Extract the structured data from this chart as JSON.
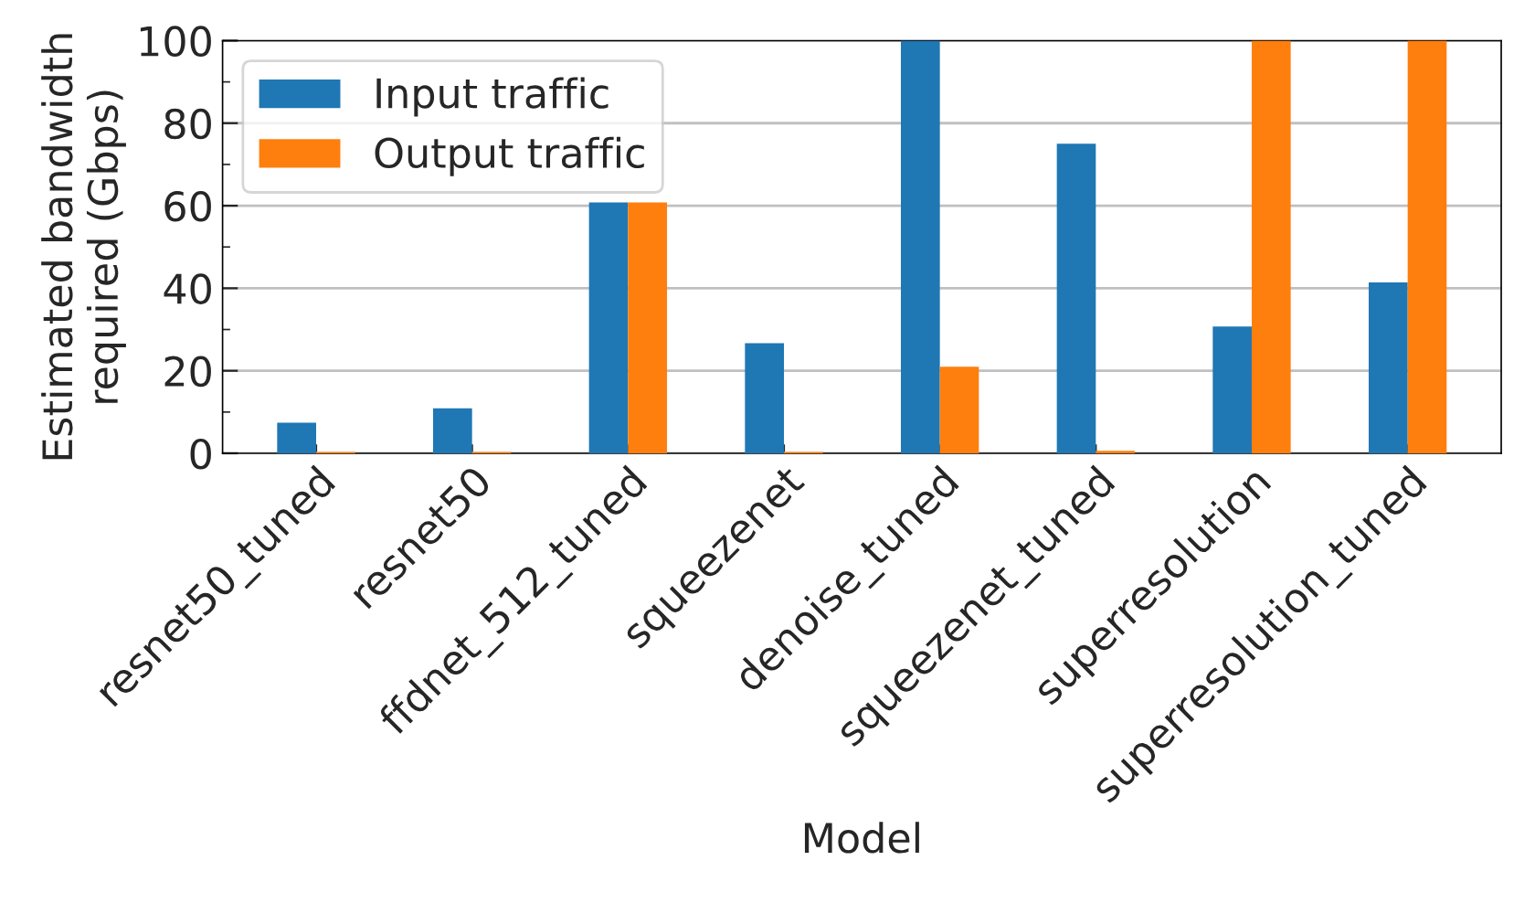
{
  "chart_data": {
    "type": "bar",
    "xlabel": "Model",
    "ylabel": "Estimated bandwidth\nrequired (Gbps)",
    "categories": [
      "resnet50_tuned",
      "resnet50",
      "ffdnet_512_tuned",
      "squeezenet",
      "denoise_tuned",
      "squeezenet_tuned",
      "superresolution",
      "superresolution_tuned"
    ],
    "series": [
      {
        "name": "Input traffic",
        "color": "#1f77b4",
        "values": [
          7.4,
          10.9,
          60.8,
          26.7,
          100,
          75.0,
          30.7,
          41.4
        ]
      },
      {
        "name": "Output traffic",
        "color": "#ff7f0e",
        "values": [
          0.3,
          0.3,
          60.8,
          0.3,
          21.0,
          0.6,
          100,
          100
        ]
      }
    ],
    "ylim": [
      0,
      100
    ],
    "yticks": [
      0,
      20,
      40,
      60,
      80,
      100
    ],
    "grid": "y",
    "legend": "top left"
  }
}
